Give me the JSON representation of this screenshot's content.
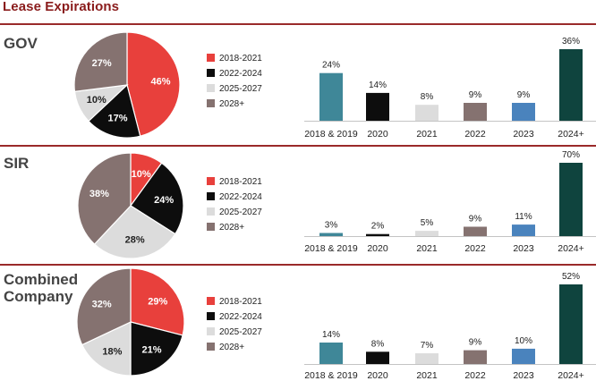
{
  "page": {
    "title": "Lease Expirations"
  },
  "colors": {
    "header": "#8a1c1c",
    "rule": "#9a2a2a",
    "legend": [
      "#e8403c",
      "#0d0d0d",
      "#dcdcdc",
      "#857270"
    ],
    "pie_text": [
      "#ffffff",
      "#ffffff",
      "#222222",
      "#ffffff"
    ],
    "bars": [
      "#3f8798",
      "#0d0d0d",
      "#dcdcdc",
      "#857270",
      "#4a83bd",
      "#0f443e"
    ]
  },
  "chart_data": [
    {
      "type": "pie",
      "title": "GOV",
      "legend": [
        "2018-2021",
        "2022-2024",
        "2025-2027",
        "2028+"
      ],
      "values": [
        46,
        17,
        10,
        27
      ],
      "value_labels": [
        "46%",
        "17%",
        "10%",
        "27%"
      ]
    },
    {
      "type": "bar",
      "title": "GOV",
      "categories": [
        "2018 & 2019",
        "2020",
        "2021",
        "2022",
        "2023",
        "2024+"
      ],
      "values": [
        24,
        14,
        8,
        9,
        9,
        36
      ],
      "value_labels": [
        "24%",
        "14%",
        "8%",
        "9%",
        "9%",
        "36%"
      ],
      "ylim": [
        0,
        36
      ]
    },
    {
      "type": "pie",
      "title": "SIR",
      "legend": [
        "2018-2021",
        "2022-2024",
        "2025-2027",
        "2028+"
      ],
      "values": [
        10,
        24,
        28,
        38
      ],
      "value_labels": [
        "10%",
        "24%",
        "28%",
        "38%"
      ]
    },
    {
      "type": "bar",
      "title": "SIR",
      "categories": [
        "2018 & 2019",
        "2020",
        "2021",
        "2022",
        "2023",
        "2024+"
      ],
      "values": [
        3,
        2,
        5,
        9,
        11,
        70
      ],
      "value_labels": [
        "3%",
        "2%",
        "5%",
        "9%",
        "11%",
        "70%"
      ],
      "ylim": [
        0,
        70
      ]
    },
    {
      "type": "pie",
      "title": "Combined\nCompany",
      "legend": [
        "2018-2021",
        "2022-2024",
        "2025-2027",
        "2028+"
      ],
      "values": [
        29,
        21,
        18,
        32
      ],
      "value_labels": [
        "29%",
        "21%",
        "18%",
        "32%"
      ]
    },
    {
      "type": "bar",
      "title": "Combined\nCompany",
      "categories": [
        "2018 & 2019",
        "2020",
        "2021",
        "2022",
        "2023",
        "2024+"
      ],
      "values": [
        14,
        8,
        7,
        9,
        10,
        52
      ],
      "value_labels": [
        "14%",
        "8%",
        "7%",
        "9%",
        "10%",
        "52%"
      ],
      "ylim": [
        0,
        52
      ]
    }
  ]
}
